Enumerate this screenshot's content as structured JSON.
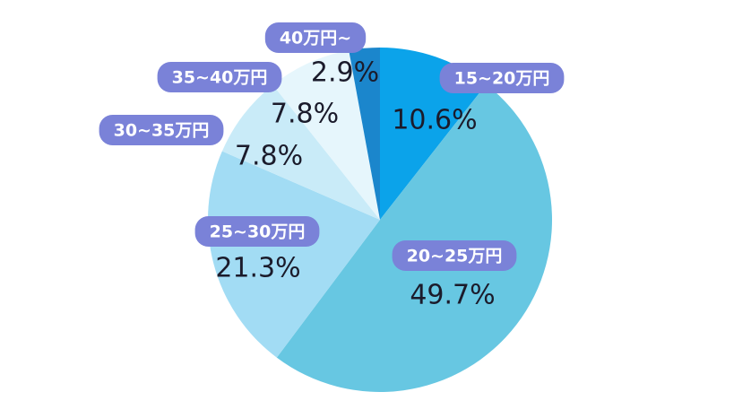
{
  "chart_data": {
    "type": "pie",
    "categories": [
      "15~20万円",
      "20~25万円",
      "25~30万円",
      "30~35万円",
      "35~40万円",
      "40万円~"
    ],
    "values": [
      10.6,
      49.7,
      21.3,
      7.8,
      7.8,
      2.9
    ],
    "value_labels": [
      "10.6%",
      "49.7%",
      "21.3%",
      "7.8%",
      "7.8%",
      "2.9%"
    ],
    "colors": [
      "#0ba3ea",
      "#67c7e2",
      "#a2dcf4",
      "#c9ebf8",
      "#e6f6fc",
      "#1b86cc"
    ]
  }
}
